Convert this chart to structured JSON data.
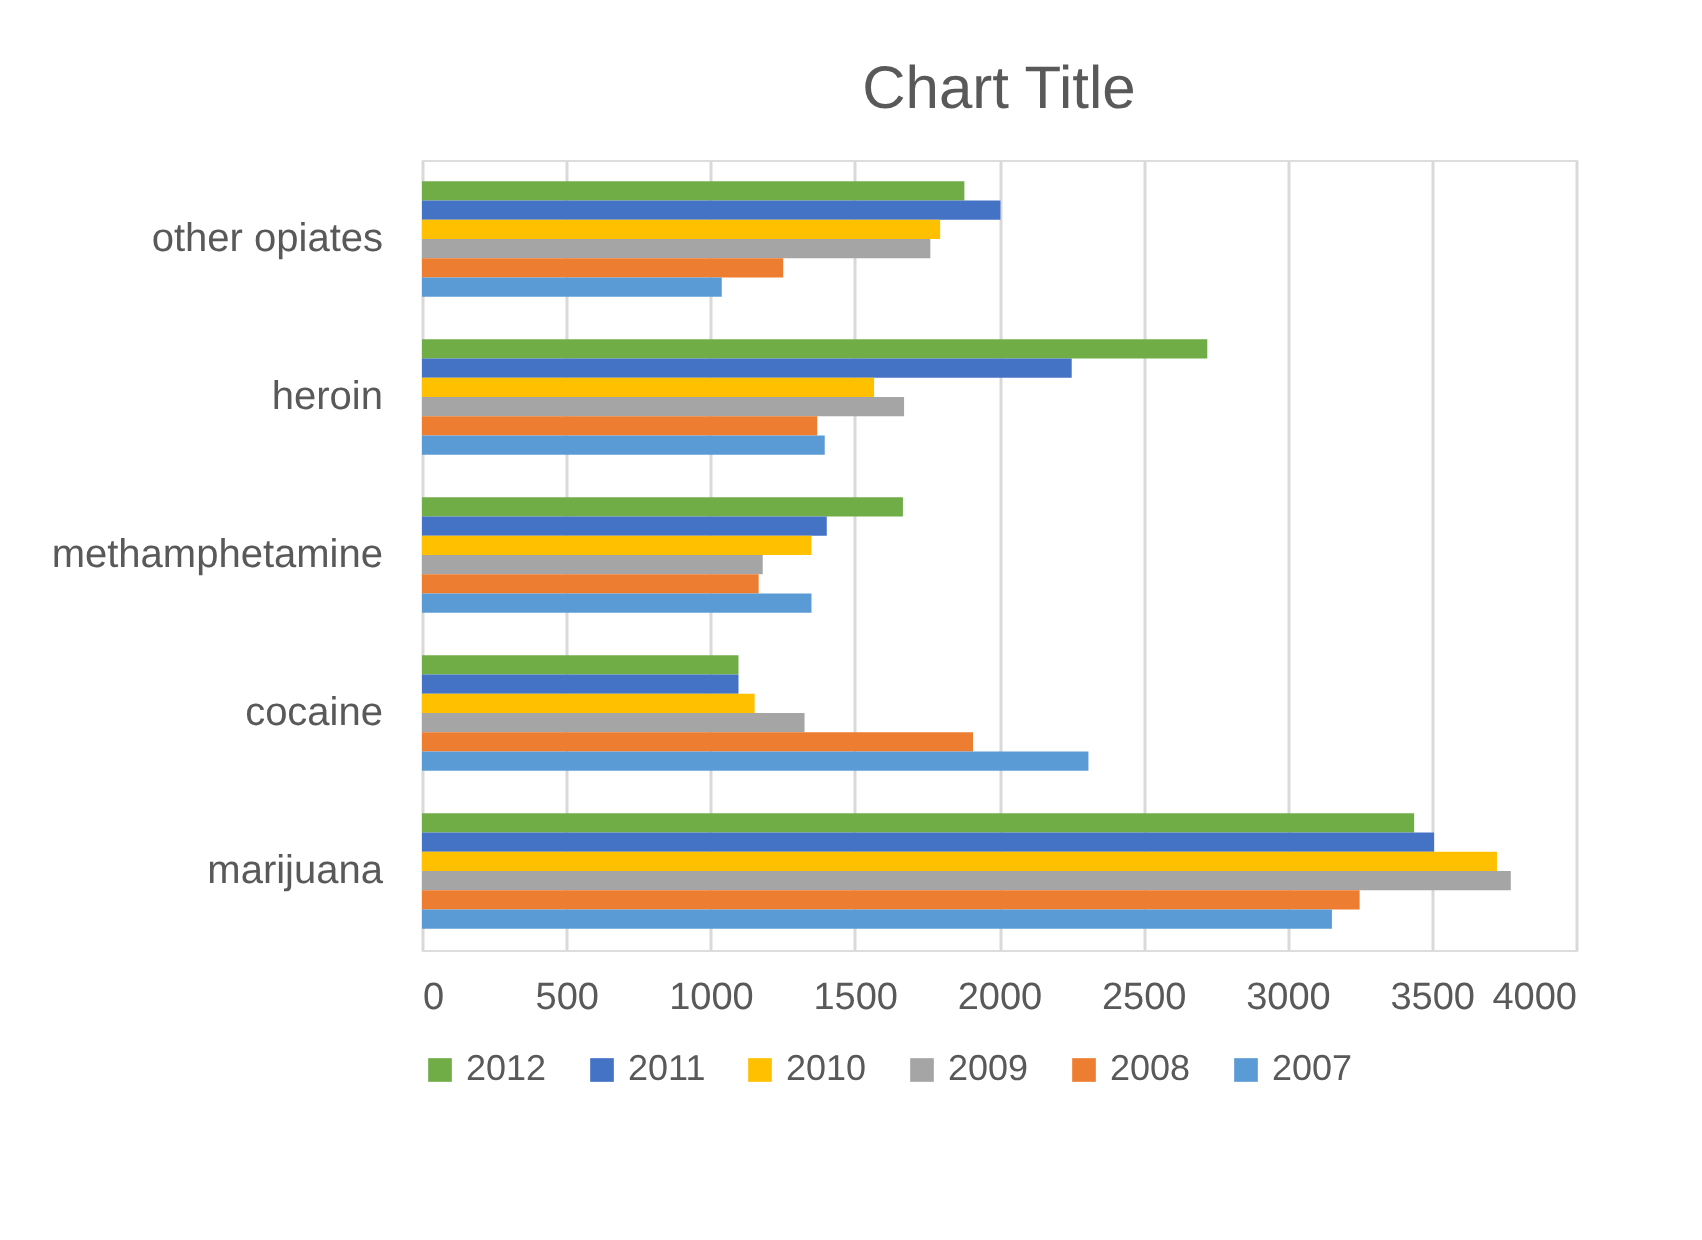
{
  "chart_data": {
    "type": "bar",
    "orientation": "horizontal",
    "title": "Chart Title",
    "categories": [
      "other opiates",
      "heroin",
      "methamphetamine",
      "cocaine",
      "marijuana"
    ],
    "series": [
      {
        "name": "2012",
        "color": "#70ad47",
        "values": [
          1880,
          2722,
          1667,
          1097,
          3439
        ]
      },
      {
        "name": "2011",
        "color": "#4472c4",
        "values": [
          2005,
          2252,
          1403,
          1097,
          3508
        ]
      },
      {
        "name": "2010",
        "color": "#ffc000",
        "values": [
          1796,
          1567,
          1350,
          1153,
          3726
        ]
      },
      {
        "name": "2009",
        "color": "#a5a5a5",
        "values": [
          1762,
          1671,
          1181,
          1326,
          3774
        ]
      },
      {
        "name": "2008",
        "color": "#ed7d31",
        "values": [
          1252,
          1370,
          1167,
          1910,
          3250
        ]
      },
      {
        "name": "2007",
        "color": "#5b9bd5",
        "values": [
          1039,
          1396,
          1350,
          2310,
          3154
        ]
      }
    ],
    "xlim": [
      0,
      4000
    ],
    "xticks": [
      0,
      500,
      1000,
      1500,
      2000,
      2500,
      3000,
      3500,
      4000
    ],
    "grid": "x",
    "legend": "bottom"
  }
}
